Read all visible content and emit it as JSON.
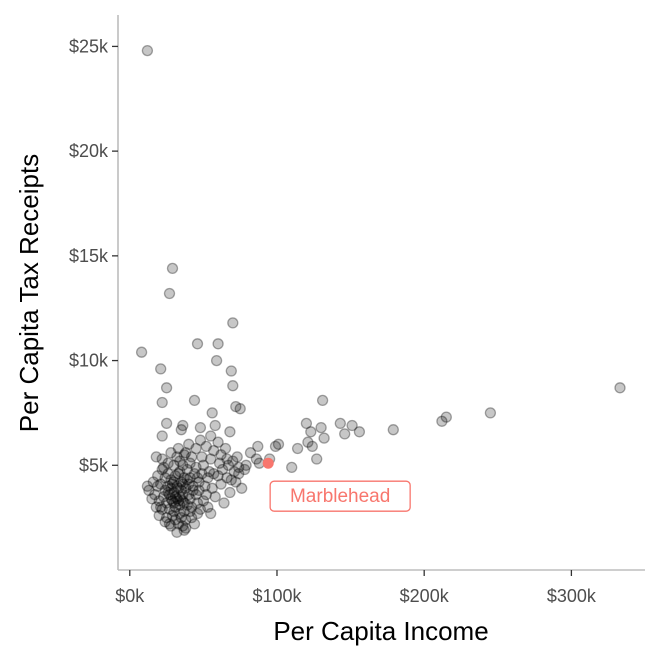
{
  "chart_data": {
    "type": "scatter",
    "xlabel": "Per Capita Income",
    "ylabel": "Per Capita Tax Receipts",
    "xlim": [
      -8000,
      350000
    ],
    "ylim": [
      0,
      26500
    ],
    "x_ticks": [
      {
        "value": 0,
        "label": "$0k"
      },
      {
        "value": 100000,
        "label": "$100k"
      },
      {
        "value": 200000,
        "label": "$200k"
      },
      {
        "value": 300000,
        "label": "$300k"
      }
    ],
    "y_ticks": [
      {
        "value": 5000,
        "label": "$5k"
      },
      {
        "value": 10000,
        "label": "$10k"
      },
      {
        "value": 15000,
        "label": "$15k"
      },
      {
        "value": 20000,
        "label": "$20k"
      },
      {
        "value": 25000,
        "label": "$25k"
      }
    ],
    "grid": false,
    "point_color": "#000000",
    "point_alpha": 0.22,
    "highlight_color": "#f8766d",
    "highlight": {
      "name": "Marblehead",
      "x": 94000,
      "y": 5100
    },
    "points": [
      [
        12000,
        24800
      ],
      [
        29000,
        14400
      ],
      [
        27000,
        13200
      ],
      [
        70000,
        11800
      ],
      [
        8000,
        10400
      ],
      [
        46000,
        10800
      ],
      [
        60000,
        10800
      ],
      [
        21000,
        9600
      ],
      [
        59000,
        10000
      ],
      [
        69000,
        9500
      ],
      [
        25000,
        8700
      ],
      [
        70000,
        8800
      ],
      [
        22000,
        8000
      ],
      [
        44000,
        8100
      ],
      [
        72000,
        7800
      ],
      [
        75000,
        7700
      ],
      [
        56000,
        7500
      ],
      [
        131000,
        8100
      ],
      [
        25000,
        7000
      ],
      [
        35000,
        6700
      ],
      [
        36000,
        6900
      ],
      [
        48000,
        6800
      ],
      [
        58000,
        6900
      ],
      [
        68000,
        6600
      ],
      [
        120000,
        7000
      ],
      [
        123000,
        6600
      ],
      [
        130000,
        6800
      ],
      [
        143000,
        7000
      ],
      [
        151000,
        6900
      ],
      [
        156000,
        6600
      ],
      [
        179000,
        6700
      ],
      [
        212000,
        7100
      ],
      [
        215000,
        7300
      ],
      [
        245000,
        7500
      ],
      [
        333000,
        8700
      ],
      [
        22000,
        6400
      ],
      [
        40000,
        6000
      ],
      [
        55000,
        6400
      ],
      [
        60000,
        6100
      ],
      [
        87000,
        5900
      ],
      [
        99000,
        5900
      ],
      [
        101000,
        6000
      ],
      [
        114000,
        5800
      ],
      [
        121000,
        6100
      ],
      [
        124000,
        5900
      ],
      [
        132000,
        6300
      ],
      [
        146000,
        6500
      ],
      [
        127000,
        5300
      ],
      [
        110000,
        4900
      ],
      [
        95000,
        5300
      ],
      [
        88000,
        5100
      ],
      [
        82000,
        5600
      ],
      [
        79000,
        5000
      ],
      [
        86000,
        5300
      ],
      [
        18000,
        5400
      ],
      [
        22000,
        5300
      ],
      [
        26000,
        5100
      ],
      [
        30000,
        5000
      ],
      [
        34000,
        5200
      ],
      [
        38000,
        5600
      ],
      [
        42000,
        5400
      ],
      [
        45000,
        5800
      ],
      [
        48000,
        6200
      ],
      [
        52000,
        5900
      ],
      [
        57000,
        5700
      ],
      [
        62000,
        5500
      ],
      [
        66000,
        5300
      ],
      [
        70000,
        5200
      ],
      [
        74000,
        4900
      ],
      [
        78000,
        4800
      ],
      [
        50000,
        5000
      ],
      [
        54000,
        4700
      ],
      [
        60000,
        4500
      ],
      [
        66000,
        4400
      ],
      [
        72000,
        4200
      ],
      [
        76000,
        3900
      ],
      [
        44000,
        4600
      ],
      [
        47000,
        4200
      ],
      [
        51000,
        4000
      ],
      [
        56000,
        3900
      ],
      [
        62000,
        4100
      ],
      [
        68000,
        3700
      ],
      [
        74000,
        4600
      ],
      [
        58000,
        3500
      ],
      [
        64000,
        3200
      ],
      [
        50000,
        3300
      ],
      [
        53000,
        3000
      ],
      [
        45000,
        3600
      ],
      [
        48000,
        2900
      ],
      [
        42000,
        2500
      ],
      [
        44000,
        2200
      ],
      [
        38000,
        2000
      ],
      [
        32000,
        1800
      ],
      [
        28000,
        2100
      ],
      [
        24000,
        2300
      ],
      [
        20000,
        2600
      ],
      [
        18000,
        3000
      ],
      [
        15000,
        3400
      ],
      [
        13000,
        3800
      ],
      [
        12000,
        4000
      ],
      [
        16000,
        4200
      ],
      [
        19000,
        4500
      ],
      [
        22000,
        4800
      ],
      [
        21000,
        4100
      ],
      [
        24000,
        3800
      ],
      [
        23000,
        3500
      ],
      [
        25000,
        3200
      ],
      [
        27000,
        2900
      ],
      [
        29000,
        2600
      ],
      [
        31000,
        2400
      ],
      [
        33000,
        2200
      ],
      [
        35000,
        2500
      ],
      [
        37000,
        2800
      ],
      [
        39000,
        3100
      ],
      [
        41000,
        3400
      ],
      [
        43000,
        3800
      ],
      [
        40000,
        4100
      ],
      [
        37000,
        4400
      ],
      [
        34000,
        4700
      ],
      [
        31000,
        4500
      ],
      [
        28000,
        4300
      ],
      [
        26000,
        4000
      ],
      [
        30000,
        3700
      ],
      [
        32000,
        3400
      ],
      [
        34000,
        3100
      ],
      [
        36000,
        3600
      ],
      [
        33000,
        3900
      ],
      [
        29000,
        3300
      ],
      [
        27000,
        3600
      ],
      [
        35000,
        4200
      ],
      [
        38000,
        3900
      ],
      [
        31000,
        3000
      ],
      [
        28000,
        3900
      ],
      [
        36000,
        3300
      ],
      [
        30000,
        4200
      ],
      [
        33000,
        4600
      ],
      [
        26000,
        4600
      ],
      [
        24000,
        4400
      ],
      [
        39000,
        4800
      ],
      [
        41000,
        5100
      ],
      [
        36000,
        5000
      ],
      [
        32000,
        5400
      ],
      [
        28000,
        5600
      ],
      [
        40000,
        3600
      ],
      [
        42000,
        3000
      ],
      [
        46000,
        3200
      ],
      [
        38000,
        2400
      ],
      [
        34000,
        2700
      ],
      [
        30000,
        2800
      ],
      [
        25000,
        2500
      ],
      [
        22000,
        2900
      ],
      [
        20000,
        3300
      ],
      [
        23000,
        4900
      ],
      [
        45000,
        4900
      ],
      [
        49000,
        5400
      ],
      [
        55000,
        5300
      ],
      [
        63000,
        4800
      ],
      [
        67000,
        5000
      ],
      [
        71000,
        4700
      ],
      [
        33000,
        5800
      ],
      [
        37000,
        5500
      ],
      [
        41000,
        4400
      ],
      [
        47000,
        3800
      ],
      [
        52000,
        3600
      ],
      [
        36000,
        2100
      ],
      [
        27000,
        2200
      ],
      [
        31000,
        3500
      ],
      [
        29000,
        4100
      ],
      [
        35000,
        3800
      ],
      [
        32000,
        4000
      ],
      [
        34000,
        3500
      ],
      [
        30000,
        3200
      ],
      [
        36000,
        4100
      ],
      [
        33000,
        3300
      ],
      [
        28000,
        3400
      ],
      [
        37000,
        3200
      ],
      [
        26000,
        3700
      ],
      [
        39000,
        4300
      ],
      [
        43000,
        4000
      ],
      [
        46000,
        4400
      ],
      [
        49000,
        4600
      ],
      [
        53000,
        4400
      ],
      [
        57000,
        4600
      ],
      [
        61000,
        5100
      ],
      [
        65000,
        5800
      ],
      [
        69000,
        4300
      ],
      [
        73000,
        5400
      ],
      [
        19000,
        4000
      ],
      [
        17000,
        3600
      ],
      [
        21000,
        3000
      ],
      [
        46000,
        2700
      ],
      [
        41000,
        2800
      ],
      [
        55000,
        2700
      ],
      [
        37000,
        1900
      ]
    ]
  }
}
